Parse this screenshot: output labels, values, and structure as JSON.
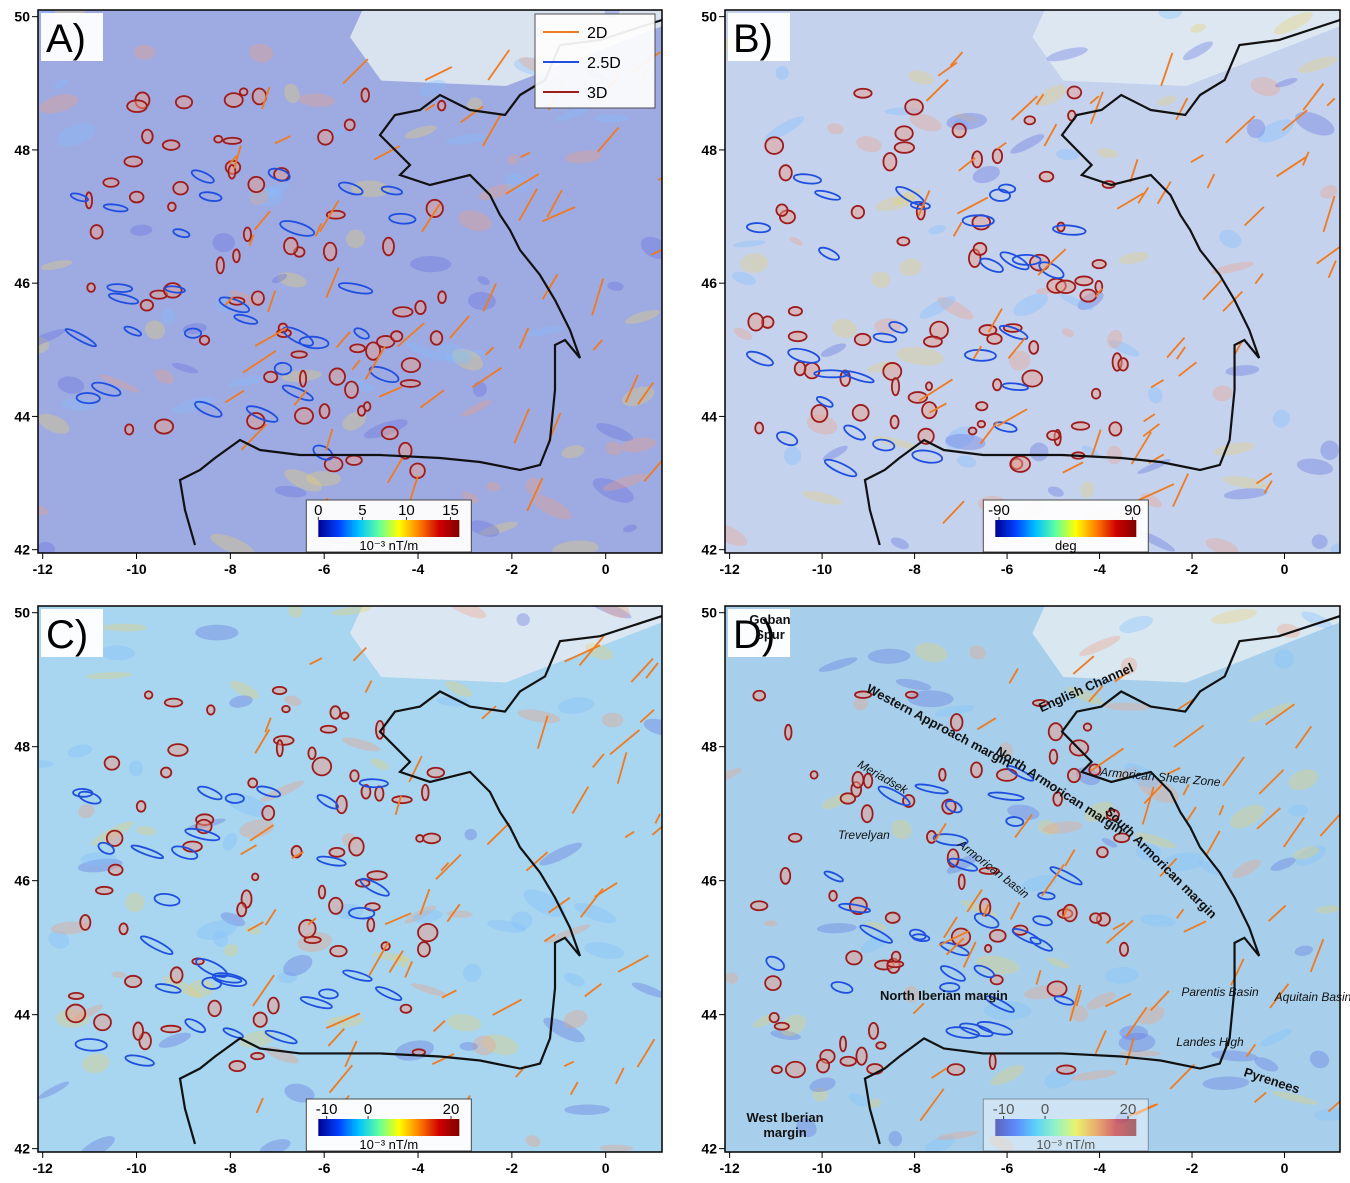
{
  "panels": [
    {
      "label": "A)",
      "background": "#9eaae2",
      "xlim": [
        -12.1,
        1.2
      ],
      "ylim": [
        41.95,
        50.1
      ],
      "xticks": [
        -12,
        -10,
        -8,
        -6,
        -4,
        -2,
        0
      ],
      "yticks": [
        42,
        44,
        46,
        48,
        50
      ],
      "colorbar": {
        "lim": [
          0,
          16
        ],
        "ticks": [
          0,
          5,
          10,
          15
        ],
        "unit": "10⁻³ nT/m"
      },
      "legend": [
        {
          "name": "2D",
          "color": "#f07a1e"
        },
        {
          "name": "2.5D",
          "color": "#1f4fe0"
        },
        {
          "name": "3D",
          "color": "#9e1b1b"
        }
      ]
    },
    {
      "label": "B)",
      "background": "#c4d2ee",
      "xlim": [
        -12.1,
        1.2
      ],
      "ylim": [
        41.95,
        50.1
      ],
      "xticks": [
        -12,
        -10,
        -8,
        -6,
        -4,
        -2,
        0
      ],
      "yticks": [
        42,
        44,
        46,
        48,
        50
      ],
      "colorbar": {
        "lim": [
          -95,
          95
        ],
        "ticks": [
          -90,
          90
        ],
        "unit": "deg"
      }
    },
    {
      "label": "C)",
      "background": "#a8d5ef",
      "xlim": [
        -12.1,
        1.2
      ],
      "ylim": [
        41.95,
        50.1
      ],
      "xticks": [
        -12,
        -10,
        -8,
        -6,
        -4,
        -2,
        0
      ],
      "yticks": [
        42,
        44,
        46,
        48,
        50
      ],
      "colorbar": {
        "lim": [
          -12,
          22
        ],
        "ticks": [
          -10,
          0,
          20
        ],
        "unit": "10⁻³ nT/m"
      }
    },
    {
      "label": "D)",
      "background": "#a7cfeb",
      "xlim": [
        -12.1,
        1.2
      ],
      "ylim": [
        41.95,
        50.1
      ],
      "xticks": [
        -12,
        -10,
        -8,
        -6,
        -4,
        -2,
        0
      ],
      "yticks": [
        42,
        44,
        46,
        48,
        50
      ],
      "colorbar": {
        "lim": [
          -12,
          22
        ],
        "ticks": [
          -10,
          0,
          20
        ],
        "unit": "10⁻³ nT/m"
      },
      "places": [
        "Goban Spur",
        "English Channel",
        "Western Approach margin",
        "North Armorican margin",
        "South Armorican margin",
        "Armorican Shear Zone",
        "Meriadsek",
        "Trevelyan",
        "Armorican basin",
        "North Iberian margin",
        "Parentis Basin",
        "Aquitain Basin",
        "Landes High",
        "Pyrenees",
        "West Iberian margin"
      ]
    }
  ]
}
